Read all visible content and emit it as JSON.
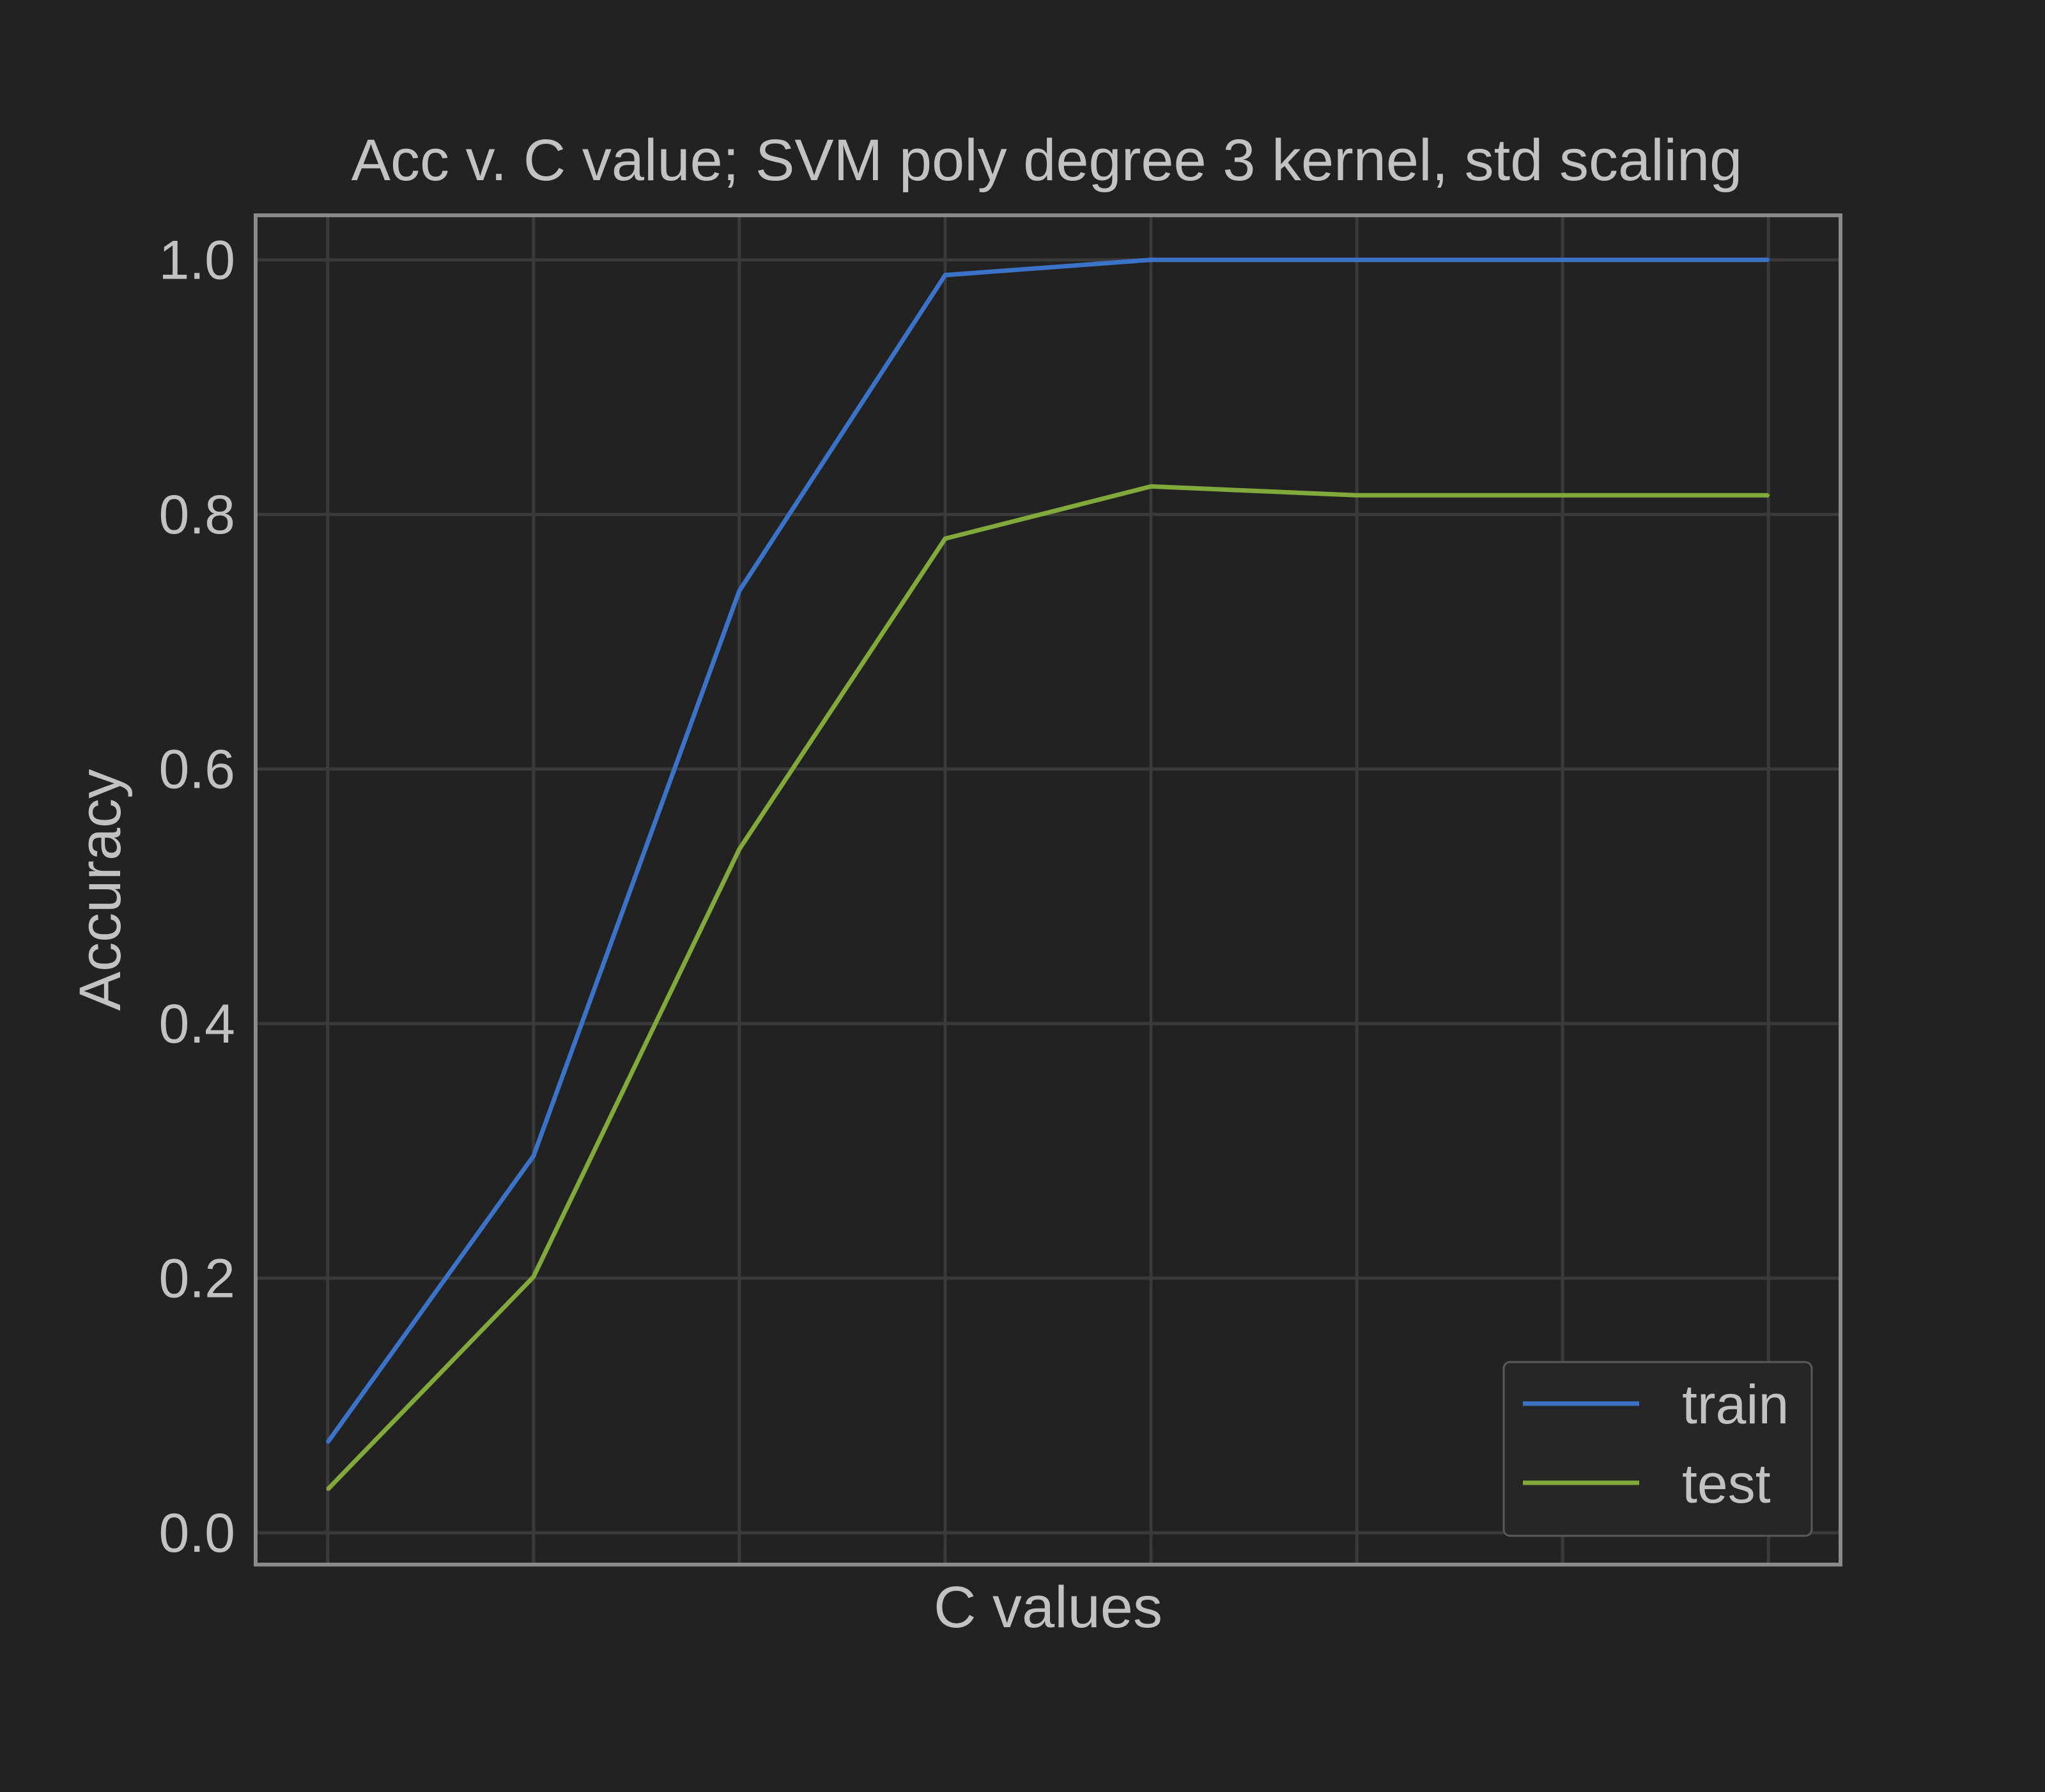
{
  "chart_data": {
    "type": "line",
    "title": "Acc v. C value; SVM poly degree 3 kernel,  std scaling",
    "xlabel": "C values",
    "ylabel": "Accuracy",
    "x": [
      0,
      1,
      2,
      3,
      4,
      5,
      6,
      7
    ],
    "xlim": [
      -0.35,
      7.35
    ],
    "ylim": [
      -0.025,
      1.035
    ],
    "yticks": [
      "0.0",
      "0.2",
      "0.4",
      "0.6",
      "0.8",
      "1.0"
    ],
    "grid": true,
    "legend_position": "lower-right",
    "series": [
      {
        "name": "train",
        "color": "#3b73c8",
        "values": [
          0.071,
          0.296,
          0.74,
          0.988,
          1.0,
          1.0,
          1.0,
          1.0
        ]
      },
      {
        "name": "test",
        "color": "#82a93b",
        "values": [
          0.034,
          0.201,
          0.537,
          0.781,
          0.822,
          0.815,
          0.815,
          0.815
        ]
      }
    ]
  },
  "colors": {
    "background": "#222222",
    "axes_frame": "#8a8a8a",
    "grid": "#3a3a3a",
    "text": "#c2c2c2"
  }
}
